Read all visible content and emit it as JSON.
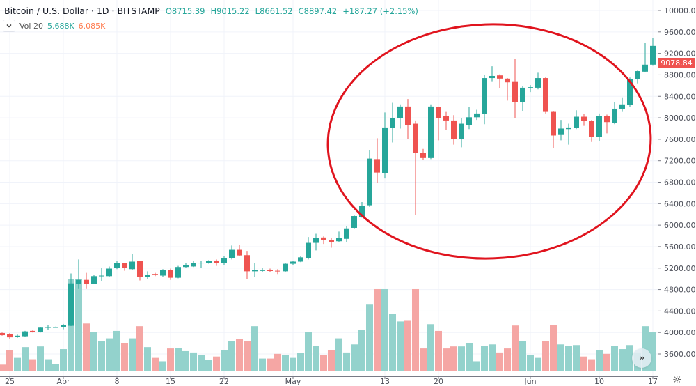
{
  "header": {
    "title": "Bitcoin / U.S. Dollar · 1D · BITSTAMP",
    "open": "O8715.39",
    "high": "H9015.22",
    "low": "L8661.52",
    "close": "C8897.42",
    "change": "+187.27 (+2.15%)"
  },
  "volume_legend": {
    "name": "Vol 20",
    "value": "5.688K",
    "ma": "6.085K"
  },
  "last_price": "9078.84",
  "colors": {
    "up": "#26a69a",
    "down": "#ef5350",
    "annotation": "#e0141e"
  },
  "icons": {
    "dropdown": "chevron-down-icon",
    "scroll": "double-chevron-right-icon",
    "settings": "gear-icon"
  },
  "chart_data": {
    "type": "candlestick",
    "price_axis": [
      "10000.00",
      "9600.00",
      "9200.00",
      "8800.00",
      "8400.00",
      "8000.00",
      "7600.00",
      "7200.00",
      "6800.00",
      "6400.00",
      "6000.00",
      "5600.00",
      "5200.00",
      "4800.00",
      "4400.00",
      "4000.00",
      "3600.00"
    ],
    "ylim": [
      3600,
      10000
    ],
    "time_ticks": [
      {
        "label": "25",
        "date": "Mar 25"
      },
      {
        "label": "Apr",
        "date": "Apr 1"
      },
      {
        "label": "8",
        "date": "Apr 8"
      },
      {
        "label": "15",
        "date": "Apr 15"
      },
      {
        "label": "22",
        "date": "Apr 22"
      },
      {
        "label": "May",
        "date": "May 1"
      },
      {
        "label": "13",
        "date": "May 13"
      },
      {
        "label": "20",
        "date": "May 20"
      },
      {
        "label": "Jun",
        "date": "Jun 1"
      },
      {
        "label": "10",
        "date": "Jun 10"
      },
      {
        "label": "17",
        "date": "Jun 17"
      }
    ],
    "start_date": "Mar 24",
    "ohlc": [
      [
        3990,
        4000,
        3940,
        3950
      ],
      [
        3970,
        3990,
        3880,
        3910
      ],
      [
        3920,
        3960,
        3900,
        3940
      ],
      [
        3930,
        4030,
        3920,
        4020
      ],
      [
        4030,
        4040,
        4000,
        4010
      ],
      [
        4010,
        4100,
        4000,
        4090
      ],
      [
        4090,
        4140,
        4050,
        4100
      ],
      [
        4100,
        4110,
        4090,
        4100
      ],
      [
        4100,
        4160,
        4060,
        4140
      ],
      [
        4125,
        5100,
        4120,
        4915
      ],
      [
        4910,
        5360,
        4810,
        4980
      ],
      [
        4980,
        5110,
        4810,
        4910
      ],
      [
        4910,
        5070,
        4900,
        5050
      ],
      [
        5050,
        5200,
        4950,
        5060
      ],
      [
        5050,
        5230,
        5040,
        5190
      ],
      [
        5200,
        5330,
        5180,
        5290
      ],
      [
        5290,
        5300,
        5150,
        5200
      ],
      [
        5180,
        5470,
        5160,
        5320
      ],
      [
        5330,
        5340,
        4970,
        5030
      ],
      [
        5040,
        5140,
        4990,
        5080
      ],
      [
        5090,
        5110,
        5050,
        5070
      ],
      [
        5060,
        5180,
        5030,
        5160
      ],
      [
        5160,
        5190,
        4980,
        5020
      ],
      [
        5020,
        5240,
        5010,
        5220
      ],
      [
        5220,
        5290,
        5200,
        5260
      ],
      [
        5230,
        5330,
        5220,
        5290
      ],
      [
        5290,
        5340,
        5200,
        5300
      ],
      [
        5300,
        5350,
        5280,
        5330
      ],
      [
        5340,
        5360,
        5240,
        5290
      ],
      [
        5300,
        5430,
        5250,
        5390
      ],
      [
        5380,
        5620,
        5360,
        5540
      ],
      [
        5540,
        5630,
        5420,
        5435
      ],
      [
        5440,
        5520,
        5000,
        5140
      ],
      [
        5140,
        5290,
        5040,
        5160
      ],
      [
        5150,
        5210,
        5130,
        5160
      ],
      [
        5160,
        5190,
        5120,
        5145
      ],
      [
        5150,
        5180,
        5090,
        5140
      ],
      [
        5140,
        5300,
        5130,
        5280
      ],
      [
        5280,
        5340,
        5260,
        5320
      ],
      [
        5320,
        5420,
        5310,
        5400
      ],
      [
        5380,
        5780,
        5360,
        5670
      ],
      [
        5670,
        5840,
        5530,
        5760
      ],
      [
        5770,
        5790,
        5650,
        5720
      ],
      [
        5720,
        5760,
        5580,
        5690
      ],
      [
        5700,
        5880,
        5690,
        5760
      ],
      [
        5745,
        5980,
        5680,
        5940
      ],
      [
        5950,
        6180,
        5940,
        6170
      ],
      [
        6150,
        6430,
        6140,
        6360
      ],
      [
        6370,
        7400,
        6340,
        7240
      ],
      [
        7230,
        7620,
        6780,
        6980
      ],
      [
        6970,
        8100,
        6870,
        7820
      ],
      [
        7810,
        8280,
        7540,
        8000
      ],
      [
        8000,
        8250,
        7800,
        8210
      ],
      [
        8210,
        8350,
        7600,
        7870
      ],
      [
        7890,
        7950,
        6190,
        7350
      ],
      [
        7350,
        7420,
        7210,
        7250
      ],
      [
        7250,
        8250,
        7230,
        8210
      ],
      [
        8200,
        8210,
        7580,
        8000
      ],
      [
        8030,
        8110,
        7770,
        7950
      ],
      [
        7950,
        8050,
        7500,
        7610
      ],
      [
        7610,
        7990,
        7450,
        7890
      ],
      [
        7870,
        8200,
        7790,
        8010
      ],
      [
        8010,
        8150,
        7960,
        8080
      ],
      [
        8070,
        8800,
        7880,
        8740
      ],
      [
        8740,
        8960,
        8680,
        8780
      ],
      [
        8790,
        8810,
        8550,
        8730
      ],
      [
        8730,
        8740,
        8320,
        8660
      ],
      [
        8680,
        9100,
        8000,
        8290
      ],
      [
        8290,
        8590,
        8120,
        8560
      ],
      [
        8560,
        8610,
        8480,
        8570
      ],
      [
        8560,
        8840,
        8530,
        8740
      ],
      [
        8740,
        8760,
        8080,
        8110
      ],
      [
        8110,
        8120,
        7440,
        7670
      ],
      [
        7680,
        7960,
        7580,
        7800
      ],
      [
        7790,
        7890,
        7500,
        7820
      ],
      [
        7810,
        8140,
        7790,
        8020
      ],
      [
        8020,
        8070,
        7850,
        7940
      ],
      [
        7940,
        7960,
        7550,
        7640
      ],
      [
        7640,
        8080,
        7560,
        8030
      ],
      [
        8030,
        8060,
        7710,
        7920
      ],
      [
        7910,
        8290,
        7880,
        8170
      ],
      [
        8170,
        8380,
        8110,
        8250
      ],
      [
        8240,
        8750,
        8200,
        8720
      ],
      [
        8720,
        8880,
        8640,
        8870
      ],
      [
        8860,
        9390,
        8850,
        8990
      ],
      [
        8990,
        9480,
        8970,
        9340
      ]
    ],
    "volume_k": [
      0.9,
      3.1,
      1.9,
      3.5,
      1.7,
      3.6,
      1.7,
      1.0,
      3.2,
      13.6,
      13.6,
      7.0,
      5.7,
      4.4,
      4.8,
      5.9,
      4.1,
      4.8,
      6.6,
      3.5,
      1.9,
      1.4,
      3.3,
      3.4,
      2.9,
      2.7,
      2.3,
      1.6,
      2.1,
      3.1,
      4.4,
      4.7,
      4.4,
      6.6,
      1.8,
      1.8,
      2.5,
      2.3,
      1.9,
      2.6,
      5.7,
      3.7,
      2.3,
      3.1,
      4.8,
      2.7,
      3.9,
      6.0,
      9.8,
      12.1,
      12.1,
      8.4,
      7.3,
      7.5,
      12.1,
      3.3,
      6.9,
      5.9,
      3.3,
      3.6,
      3.6,
      4.1,
      1.4,
      3.7,
      3.9,
      2.7,
      3.3,
      6.7,
      4.4,
      2.3,
      1.9,
      4.4,
      6.8,
      3.9,
      3.7,
      3.8,
      2.1,
      1.7,
      3.1,
      2.5,
      3.7,
      3.2,
      3.8,
      2.7,
      6.6,
      5.7
    ]
  }
}
